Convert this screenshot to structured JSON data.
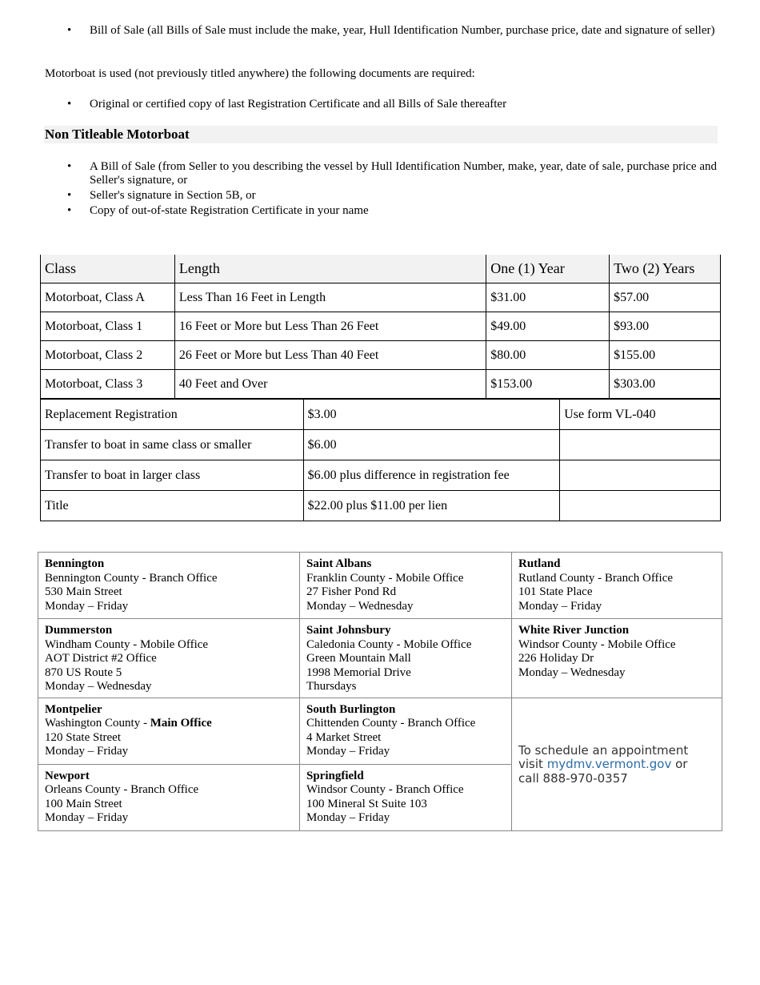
{
  "top_bullets": [
    "Bill of Sale (all Bills of Sale must include the make, year, Hull Identification Number, purchase price, date and signature of seller)"
  ],
  "used_text": "Motorboat is used (not previously titled anywhere) the following documents are required:",
  "used_bullets": [
    "Original or certified copy of last Registration Certificate and all Bills of Sale thereafter"
  ],
  "non_titleable": {
    "heading": "Non Titleable Motorboat",
    "bullets": [
      "A Bill of Sale (from Seller to you describing the vessel by Hull Identification Number, make, year, date of sale, purchase price and Seller's signature, or",
      "Seller's signature in Section 5B, or",
      "Copy of out-of-state Registration Certificate in your name"
    ]
  },
  "fee_table": {
    "headers": [
      "Class",
      "Length",
      "One (1) Year",
      "Two (2) Years"
    ],
    "rows": [
      [
        "Motorboat, Class A",
        "Less Than 16 Feet in Length",
        "$31.00",
        "$57.00"
      ],
      [
        "Motorboat, Class 1",
        "16 Feet or More but Less Than 26 Feet",
        "$49.00",
        "$93.00"
      ],
      [
        "Motorboat, Class 2",
        "26 Feet or More but Less Than 40 Feet",
        "$80.00",
        "$155.00"
      ],
      [
        "Motorboat, Class 3",
        "40 Feet and Over",
        "$153.00",
        "$303.00"
      ]
    ]
  },
  "misc_fees": [
    [
      "Replacement Registration",
      "$3.00",
      "Use form VL-040"
    ],
    [
      "Transfer to boat in same class or smaller",
      "$6.00",
      ""
    ],
    [
      "Transfer to boat in larger class",
      "$6.00 plus difference in registration fee",
      ""
    ],
    [
      "Title",
      "$22.00 plus $11.00 per lien",
      ""
    ]
  ],
  "offices": [
    {
      "name": "Bennington",
      "lines": [
        "Bennington County - Branch Office",
        "530 Main Street",
        "Monday – Friday"
      ]
    },
    {
      "name": "Saint Albans",
      "lines": [
        "Franklin County - Mobile Office",
        "27 Fisher Pond Rd",
        "Monday – Wednesday"
      ]
    },
    {
      "name": "Rutland",
      "lines": [
        "Rutland County - Branch Office",
        "101 State Place",
        "Monday – Friday"
      ]
    },
    {
      "name": "Dummerston",
      "lines": [
        "Windham County - Mobile Office",
        "AOT District #2 Office",
        "870 US Route 5",
        "Monday – Wednesday"
      ]
    },
    {
      "name": "Saint Johnsbury",
      "lines": [
        "Caledonia County - Mobile Office",
        "Green Mountain Mall",
        "1998 Memorial Drive",
        "Thursdays"
      ]
    },
    {
      "name": "White River Junction",
      "lines": [
        "Windsor County - Mobile Office",
        "226 Holiday Dr",
        "Monday – Wednesday"
      ]
    },
    {
      "name": "Montpelier",
      "county": "Washington County - ",
      "county_bold": "Main Office",
      "lines": [
        "120 State Street",
        "Monday – Friday"
      ]
    },
    {
      "name": "South Burlington",
      "lines": [
        "Chittenden County - Branch Office",
        "4 Market Street",
        "Monday – Friday"
      ]
    },
    {
      "name": "Newport",
      "lines": [
        "Orleans County - Branch Office",
        "100 Main Street",
        "Monday – Friday"
      ]
    },
    {
      "name": "Springfield",
      "lines": [
        "Windsor County - Branch Office",
        "100 Mineral St Suite 103",
        "Monday – Friday"
      ]
    }
  ],
  "appointment": {
    "line1": "To schedule an appointment",
    "visit": "visit ",
    "link": "mydmv.vermont.gov",
    "or": " or",
    "call": "call 888-970-0357"
  },
  "colors": {
    "link": "#2e6da4",
    "heading_bg": "#f2f2f2"
  }
}
